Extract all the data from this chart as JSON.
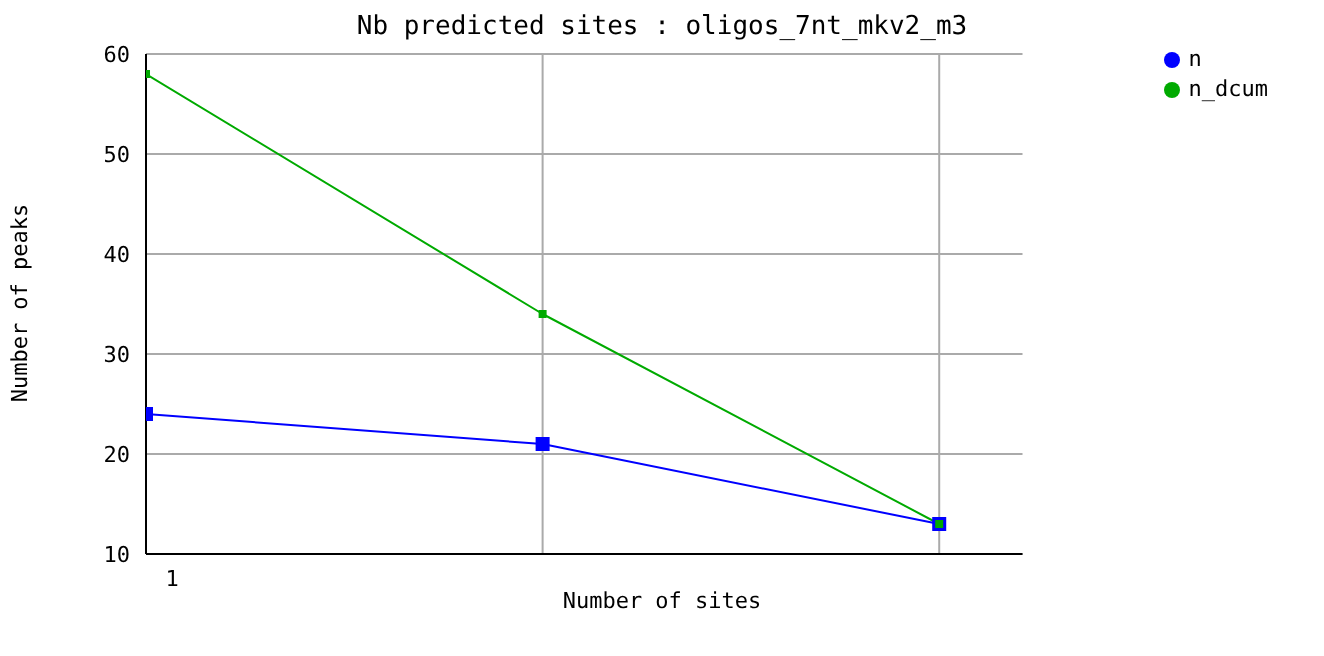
{
  "chart_data": {
    "type": "line",
    "title": "Nb predicted sites : oligos_7nt_mkv2_m3",
    "xlabel": "Number of sites",
    "ylabel": "Number of peaks",
    "categories": [
      "1",
      null,
      null
    ],
    "series": [
      {
        "name": "n",
        "color": "#0000ff",
        "values": [
          24,
          21,
          13
        ]
      },
      {
        "name": "n_dcum",
        "color": "#00aa00",
        "values": [
          58,
          34,
          13
        ]
      }
    ],
    "ylim": [
      10,
      60
    ],
    "yticks": [
      10,
      20,
      30,
      40,
      50,
      60
    ],
    "grid": true,
    "legend": "top right",
    "marker": "square",
    "line_style": "solid"
  }
}
